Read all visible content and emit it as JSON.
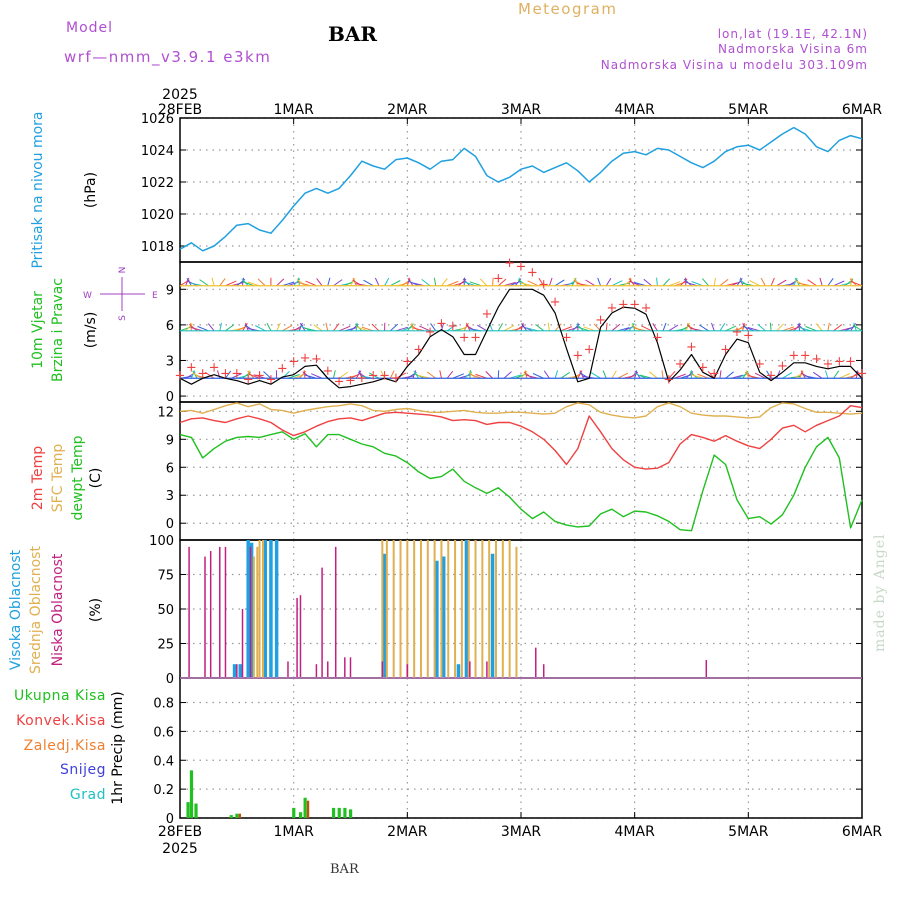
{
  "header": {
    "model_label": "Model",
    "model_name": "wrf—nmm_v3.9.1 e3km",
    "station": "BAR",
    "product": "Meteogram",
    "lonlat": "lon,lat (19.1E, 42.1N)",
    "elevation": "Nadmorska Visina 6m",
    "model_elevation": "Nadmorska Visina u modelu 303.109m"
  },
  "footer": {
    "station": "BAR",
    "watermark": "made by Angel"
  },
  "colors": {
    "pressure": "#20a0e0",
    "wind_label": "#20c020",
    "temp2m": "#f04040",
    "sfc": "#e0b050",
    "dew": "#20c020",
    "high": "#20a0e0",
    "mid": "#e0b050",
    "low": "#c02080",
    "total": "#20c020",
    "conv": "#f04040",
    "frz": "#f08030",
    "snow": "#4040e0",
    "hail": "#20c0c0",
    "header": "#b050d0"
  },
  "chart_data": [
    {
      "type": "line",
      "title": "Pritisak na nivou mora",
      "ylabel": "(hPa)",
      "x_start_label": "28FEB",
      "x_year": "2025",
      "x_tick_labels": [
        "28FEB",
        "1MAR",
        "2MAR",
        "3MAR",
        "4MAR",
        "5MAR",
        "6MAR"
      ],
      "x_range_days": [
        0,
        6
      ],
      "ylim": [
        1017,
        1026
      ],
      "yticks": [
        1018,
        1020,
        1022,
        1024,
        1026
      ],
      "series": [
        {
          "name": "Pritisak na nivou mora",
          "unit": "hPa",
          "x_days": [
            0,
            0.1,
            0.2,
            0.3,
            0.4,
            0.5,
            0.6,
            0.7,
            0.8,
            0.9,
            1.0,
            1.1,
            1.2,
            1.3,
            1.4,
            1.5,
            1.6,
            1.7,
            1.8,
            1.9,
            2.0,
            2.1,
            2.2,
            2.3,
            2.4,
            2.5,
            2.6,
            2.7,
            2.8,
            2.9,
            3.0,
            3.1,
            3.2,
            3.3,
            3.4,
            3.5,
            3.6,
            3.7,
            3.8,
            3.9,
            4.0,
            4.1,
            4.2,
            4.3,
            4.4,
            4.5,
            4.6,
            4.7,
            4.8,
            4.9,
            5.0,
            5.1,
            5.2,
            5.3,
            5.4,
            5.5,
            5.6,
            5.7,
            5.8,
            5.9,
            6.0
          ],
          "values": [
            1017.8,
            1018.2,
            1017.7,
            1018.0,
            1018.6,
            1019.3,
            1019.4,
            1019.0,
            1018.8,
            1019.6,
            1020.5,
            1021.3,
            1021.6,
            1021.3,
            1021.6,
            1022.4,
            1023.3,
            1023.0,
            1022.8,
            1023.4,
            1023.5,
            1023.2,
            1022.8,
            1023.3,
            1023.4,
            1024.1,
            1023.6,
            1022.4,
            1022.0,
            1022.3,
            1022.8,
            1023.0,
            1022.6,
            1022.9,
            1023.2,
            1022.7,
            1022.0,
            1022.6,
            1023.3,
            1023.8,
            1023.9,
            1023.7,
            1024.1,
            1024.0,
            1023.6,
            1023.2,
            1022.9,
            1023.3,
            1023.9,
            1024.2,
            1024.3,
            1024.0,
            1024.5,
            1025.0,
            1025.4,
            1025.0,
            1024.2,
            1023.9,
            1024.6,
            1024.9,
            1024.7
          ]
        }
      ]
    },
    {
      "type": "line",
      "title": "10m Vjetar Brzina i Pravac",
      "ylabel": "(m/s)",
      "compass": {
        "n": "N",
        "s": "S",
        "e": "E",
        "w": "W"
      },
      "ylim": [
        -0.5,
        11.3
      ],
      "yticks": [
        0,
        3,
        6,
        9
      ],
      "wind_barb_rows": [
        1.5,
        5.5,
        9.3
      ],
      "series": [
        {
          "name": "Brzina vjetra",
          "unit": "m/s",
          "x_days": [
            0,
            0.1,
            0.2,
            0.3,
            0.4,
            0.5,
            0.6,
            0.7,
            0.8,
            0.9,
            1.0,
            1.1,
            1.2,
            1.3,
            1.4,
            1.5,
            1.6,
            1.7,
            1.8,
            1.9,
            2.0,
            2.1,
            2.2,
            2.3,
            2.4,
            2.5,
            2.6,
            2.7,
            2.8,
            2.9,
            3.0,
            3.1,
            3.2,
            3.3,
            3.4,
            3.5,
            3.6,
            3.7,
            3.8,
            3.9,
            4.0,
            4.1,
            4.2,
            4.3,
            4.4,
            4.5,
            4.6,
            4.7,
            4.8,
            4.9,
            5.0,
            5.1,
            5.2,
            5.3,
            5.4,
            5.5,
            5.6,
            5.7,
            5.8,
            5.9,
            6.0
          ],
          "values": [
            1.5,
            1.0,
            1.5,
            1.8,
            1.5,
            1.3,
            1.0,
            1.3,
            1.0,
            1.6,
            1.8,
            2.5,
            2.6,
            1.5,
            0.7,
            0.8,
            1.0,
            1.2,
            1.5,
            1.2,
            2.5,
            3.5,
            5.0,
            5.6,
            5.0,
            3.5,
            3.5,
            5.5,
            7.5,
            9.0,
            9.0,
            9.0,
            8.5,
            7.0,
            4.0,
            1.2,
            1.5,
            5.8,
            7.0,
            7.5,
            7.4,
            6.9,
            4.5,
            1.2,
            2.2,
            3.5,
            2.0,
            1.5,
            3.5,
            4.8,
            4.5,
            2.0,
            1.3,
            2.0,
            2.8,
            2.8,
            2.5,
            2.3,
            2.5,
            2.5,
            1.5
          ]
        },
        {
          "name": "Udari vjetra",
          "unit": "m/s",
          "x_days": [
            0,
            0.1,
            0.2,
            0.3,
            0.4,
            0.5,
            0.6,
            0.7,
            0.8,
            0.9,
            1.0,
            1.1,
            1.2,
            1.3,
            1.4,
            1.5,
            1.6,
            1.7,
            1.8,
            1.9,
            2.0,
            2.1,
            2.2,
            2.3,
            2.4,
            2.5,
            2.6,
            2.7,
            2.8,
            2.9,
            3.0,
            3.1,
            3.2,
            3.3,
            3.4,
            3.5,
            3.6,
            3.7,
            3.8,
            3.9,
            4.0,
            4.1,
            4.2,
            4.3,
            4.4,
            4.5,
            4.6,
            4.7,
            4.8,
            4.9,
            5.0,
            5.1,
            5.2,
            5.3,
            5.4,
            5.5,
            5.6,
            5.7,
            5.8,
            5.9,
            6.0
          ],
          "values": [
            1.8,
            2.5,
            2.0,
            2.5,
            2.0,
            2.0,
            1.5,
            1.8,
            1.5,
            2.4,
            3.0,
            3.3,
            3.2,
            2.2,
            1.3,
            1.4,
            1.6,
            1.8,
            1.8,
            1.6,
            3.0,
            4.0,
            5.5,
            6.2,
            6.0,
            5.0,
            5.0,
            7.0,
            10.0,
            11.3,
            11.0,
            10.5,
            9.5,
            8.0,
            5.0,
            3.5,
            4.0,
            6.5,
            7.5,
            7.8,
            7.8,
            7.5,
            5.0,
            1.5,
            2.8,
            4.2,
            2.5,
            2.0,
            4.0,
            5.5,
            5.2,
            2.8,
            1.8,
            2.6,
            3.5,
            3.5,
            3.2,
            2.8,
            3.0,
            3.0,
            2.0
          ]
        }
      ]
    },
    {
      "type": "line",
      "ylabel": "(C)",
      "titles": [
        "2m Temp",
        "SFC Temp",
        "dewpt Temp"
      ],
      "ylim": [
        -1.8,
        13
      ],
      "yticks": [
        0,
        3,
        6,
        9,
        12
      ],
      "series": [
        {
          "name": "SFC Temp",
          "unit": "C",
          "x_days": [
            0,
            0.1,
            0.2,
            0.3,
            0.4,
            0.5,
            0.6,
            0.7,
            0.8,
            0.9,
            1.0,
            1.1,
            1.2,
            1.3,
            1.4,
            1.5,
            1.6,
            1.7,
            1.8,
            1.9,
            2.0,
            2.1,
            2.2,
            2.3,
            2.4,
            2.5,
            2.6,
            2.7,
            2.8,
            2.9,
            3.0,
            3.1,
            3.2,
            3.3,
            3.4,
            3.5,
            3.6,
            3.7,
            3.8,
            3.9,
            4.0,
            4.1,
            4.2,
            4.3,
            4.4,
            4.5,
            4.6,
            4.7,
            4.8,
            4.9,
            5.0,
            5.1,
            5.2,
            5.3,
            5.4,
            5.5,
            5.6,
            5.7,
            5.8,
            5.9,
            6.0
          ],
          "values": [
            12.0,
            12.1,
            11.8,
            12.2,
            12.6,
            12.9,
            12.5,
            12.8,
            12.2,
            12.1,
            11.8,
            12.1,
            12.3,
            12.5,
            12.6,
            12.8,
            12.6,
            12.1,
            12.0,
            12.2,
            12.3,
            12.1,
            11.9,
            11.9,
            12.0,
            12.1,
            11.9,
            11.8,
            11.8,
            11.9,
            11.9,
            11.8,
            11.7,
            11.8,
            12.5,
            12.9,
            12.7,
            11.9,
            11.6,
            11.4,
            11.3,
            11.5,
            12.5,
            12.9,
            12.5,
            11.8,
            11.6,
            11.5,
            11.5,
            11.4,
            11.3,
            11.4,
            12.4,
            12.9,
            12.8,
            12.3,
            11.9,
            11.9,
            11.8,
            11.7,
            11.8
          ]
        },
        {
          "name": "2m Temp",
          "unit": "C",
          "x_days": [
            0,
            0.1,
            0.2,
            0.3,
            0.4,
            0.5,
            0.6,
            0.7,
            0.8,
            0.9,
            1.0,
            1.1,
            1.2,
            1.3,
            1.4,
            1.5,
            1.6,
            1.7,
            1.8,
            1.9,
            2.0,
            2.1,
            2.2,
            2.3,
            2.4,
            2.5,
            2.6,
            2.7,
            2.8,
            2.9,
            3.0,
            3.1,
            3.2,
            3.3,
            3.4,
            3.5,
            3.6,
            3.7,
            3.8,
            3.9,
            4.0,
            4.1,
            4.2,
            4.3,
            4.4,
            4.5,
            4.6,
            4.7,
            4.8,
            4.9,
            5.0,
            5.1,
            5.2,
            5.3,
            5.4,
            5.5,
            5.6,
            5.7,
            5.8,
            5.9,
            6.0
          ],
          "values": [
            10.8,
            11.2,
            11.3,
            11.0,
            10.8,
            11.2,
            11.5,
            11.2,
            10.8,
            10.0,
            9.4,
            9.8,
            10.4,
            10.9,
            11.2,
            11.3,
            11.0,
            11.4,
            11.8,
            11.9,
            11.8,
            11.7,
            11.6,
            11.4,
            11.0,
            11.1,
            11.0,
            10.6,
            10.8,
            10.8,
            10.4,
            9.8,
            9.0,
            7.8,
            6.3,
            8.0,
            11.5,
            9.8,
            8.0,
            6.8,
            6.0,
            5.8,
            5.9,
            6.5,
            8.5,
            9.5,
            9.2,
            8.8,
            9.4,
            8.8,
            8.3,
            8.0,
            9.0,
            10.2,
            10.5,
            9.8,
            10.5,
            11.0,
            11.5,
            12.6,
            12.4
          ]
        },
        {
          "name": "dewpt Temp",
          "unit": "C",
          "x_days": [
            0,
            0.1,
            0.2,
            0.3,
            0.4,
            0.5,
            0.6,
            0.7,
            0.8,
            0.9,
            1.0,
            1.1,
            1.2,
            1.3,
            1.4,
            1.5,
            1.6,
            1.7,
            1.8,
            1.9,
            2.0,
            2.1,
            2.2,
            2.3,
            2.4,
            2.5,
            2.6,
            2.7,
            2.8,
            2.9,
            3.0,
            3.1,
            3.2,
            3.3,
            3.4,
            3.5,
            3.6,
            3.7,
            3.8,
            3.9,
            4.0,
            4.1,
            4.2,
            4.3,
            4.4,
            4.5,
            4.6,
            4.7,
            4.8,
            4.9,
            5.0,
            5.1,
            5.2,
            5.3,
            5.4,
            5.5,
            5.6,
            5.7,
            5.8,
            5.9,
            6.0
          ],
          "values": [
            9.5,
            9.2,
            7.0,
            8.0,
            8.8,
            9.2,
            9.3,
            9.2,
            9.5,
            9.8,
            9.0,
            9.6,
            8.2,
            9.5,
            9.5,
            9.0,
            8.5,
            8.2,
            7.5,
            7.2,
            6.5,
            5.5,
            4.8,
            5.0,
            5.8,
            4.5,
            3.8,
            3.2,
            3.8,
            2.8,
            1.5,
            0.5,
            1.2,
            0.2,
            -0.2,
            -0.4,
            -0.3,
            1.0,
            1.5,
            0.7,
            1.3,
            1.2,
            0.8,
            0.2,
            -0.7,
            -0.8,
            3.5,
            7.3,
            6.3,
            2.5,
            0.5,
            0.7,
            -0.1,
            0.9,
            3.0,
            6.0,
            8.2,
            9.2,
            7.0,
            -0.5,
            2.5
          ]
        }
      ]
    },
    {
      "type": "bar",
      "ylabel": "(%)",
      "titles": [
        "Visoka Oblacnost",
        "Srednja Oblacnost",
        "Niska Oblacnost"
      ],
      "ylim": [
        0,
        100
      ],
      "yticks": [
        0,
        25,
        50,
        75,
        100
      ],
      "series": [
        {
          "name": "Niska Oblacnost",
          "x_days": [
            0.08,
            0.22,
            0.27,
            0.35,
            0.4,
            0.5,
            0.55,
            0.62,
            0.95,
            1.03,
            1.06,
            1.2,
            1.25,
            1.3,
            1.37,
            1.45,
            1.5,
            1.78,
            2.0,
            2.55,
            2.7,
            3.13,
            3.2,
            4.63
          ],
          "values": [
            95,
            88,
            92,
            95,
            95,
            10,
            50,
            95,
            12,
            58,
            60,
            10,
            80,
            12,
            95,
            15,
            15,
            12,
            10,
            12,
            12,
            22,
            10,
            13
          ]
        },
        {
          "name": "Srednja Oblacnost",
          "x_days": [
            0.65,
            0.68,
            0.7,
            0.73,
            1.78,
            1.82,
            1.88,
            1.94,
            2.0,
            2.06,
            2.12,
            2.18,
            2.24,
            2.3,
            2.36,
            2.42,
            2.48,
            2.54,
            2.6,
            2.66,
            2.72,
            2.78,
            2.84,
            2.9,
            2.96
          ],
          "values": [
            88,
            95,
            100,
            100,
            100,
            100,
            100,
            100,
            100,
            100,
            100,
            100,
            100,
            100,
            100,
            100,
            100,
            100,
            100,
            100,
            100,
            100,
            100,
            100,
            95
          ]
        },
        {
          "name": "Visoka Oblacnost",
          "x_days": [
            0.48,
            0.53,
            0.6,
            0.63,
            0.75,
            0.8,
            0.85,
            1.8,
            2.26,
            2.32,
            2.45,
            2.52,
            2.75
          ],
          "values": [
            10,
            10,
            100,
            98,
            100,
            100,
            100,
            90,
            85,
            88,
            10,
            100,
            90
          ]
        }
      ]
    },
    {
      "type": "bar",
      "ylabel": "1hr Precip (mm)",
      "titles": [
        "Ukupna Kisa",
        "Konvek.Kisa",
        "Zaledj.Kisa",
        "Snijeg",
        "Grad"
      ],
      "ylim": [
        0,
        0.97
      ],
      "yticks": [
        0,
        0.2,
        0.4,
        0.6,
        0.8
      ],
      "series": [
        {
          "name": "Ukupna Kisa",
          "x_days": [
            0.07,
            0.1,
            0.14,
            0.45,
            0.5,
            1.0,
            1.06,
            1.1,
            1.35,
            1.4,
            1.45,
            1.5
          ],
          "values": [
            0.11,
            0.33,
            0.1,
            0.02,
            0.03,
            0.07,
            0.04,
            0.14,
            0.07,
            0.07,
            0.07,
            0.06
          ]
        },
        {
          "name": "Konvek.Kisa",
          "x_days": [
            0.5,
            1.1
          ],
          "values": [
            0.03,
            0.12
          ]
        }
      ]
    }
  ]
}
